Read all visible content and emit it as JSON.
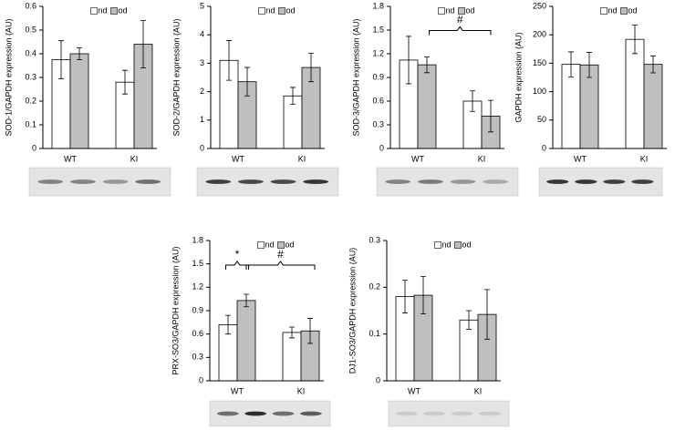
{
  "chart_data": [
    {
      "type": "bar",
      "y_label": "SOD-1/GAPDH expression (AU)",
      "categories": [
        "WT",
        "KI"
      ],
      "series": [
        {
          "name": "nd",
          "color": "#ffffff",
          "values": [
            0.375,
            0.28
          ],
          "errors": [
            0.08,
            0.05
          ]
        },
        {
          "name": "od",
          "color": "#bfbfbf",
          "values": [
            0.4,
            0.44
          ],
          "errors": [
            0.025,
            0.1
          ]
        }
      ],
      "ylim": [
        0,
        0.6
      ],
      "yticks": [
        0,
        0.1,
        0.2,
        0.3,
        0.4,
        0.5,
        0.6
      ]
    },
    {
      "type": "bar",
      "y_label": "SOD-2/GAPDH expression (AU)",
      "categories": [
        "WT",
        "KI"
      ],
      "series": [
        {
          "name": "nd",
          "color": "#ffffff",
          "values": [
            3.1,
            1.85
          ],
          "errors": [
            0.7,
            0.3
          ]
        },
        {
          "name": "od",
          "color": "#bfbfbf",
          "values": [
            2.35,
            2.85
          ],
          "errors": [
            0.5,
            0.5
          ]
        }
      ],
      "ylim": [
        0,
        5
      ],
      "yticks": [
        0,
        1,
        2,
        3,
        4,
        5
      ]
    },
    {
      "type": "bar",
      "y_label": "SOD-3/GAPDH expression (AU)",
      "categories": [
        "WT",
        "KI"
      ],
      "series": [
        {
          "name": "nd",
          "color": "#ffffff",
          "values": [
            1.12,
            0.6
          ],
          "errors": [
            0.3,
            0.13
          ]
        },
        {
          "name": "od",
          "color": "#bfbfbf",
          "values": [
            1.06,
            0.41
          ],
          "errors": [
            0.1,
            0.2
          ]
        }
      ],
      "ylim": [
        0,
        1.8
      ],
      "yticks": [
        0,
        0.3,
        0.6,
        0.9,
        1.2,
        1.5,
        1.8
      ],
      "annotations": [
        {
          "text": "#"
        }
      ]
    },
    {
      "type": "bar",
      "y_label": "GAPDH expression (AU)",
      "categories": [
        "WT",
        "KI"
      ],
      "series": [
        {
          "name": "nd",
          "color": "#ffffff",
          "values": [
            148,
            192
          ],
          "errors": [
            22,
            25
          ]
        },
        {
          "name": "od",
          "color": "#bfbfbf",
          "values": [
            147,
            148
          ],
          "errors": [
            22,
            15
          ]
        }
      ],
      "ylim": [
        0,
        250
      ],
      "yticks": [
        0,
        50,
        100,
        150,
        200,
        250
      ]
    },
    {
      "type": "bar",
      "y_label": "PRX-SO3/GAPDH  expression (AU)",
      "categories": [
        "WT",
        "KI"
      ],
      "series": [
        {
          "name": "nd",
          "color": "#ffffff",
          "values": [
            0.72,
            0.62
          ],
          "errors": [
            0.12,
            0.07
          ]
        },
        {
          "name": "od",
          "color": "#bfbfbf",
          "values": [
            1.03,
            0.64
          ],
          "errors": [
            0.08,
            0.16
          ]
        }
      ],
      "ylim": [
        0,
        1.8
      ],
      "yticks": [
        0,
        0.3,
        0.6,
        0.9,
        1.2,
        1.5,
        1.8
      ],
      "annotations": [
        {
          "text": "*"
        },
        {
          "text": "#"
        }
      ]
    },
    {
      "type": "bar",
      "y_label": "DJ1-SO3/GAPDH expression (AU)",
      "categories": [
        "WT",
        "KI"
      ],
      "series": [
        {
          "name": "nd",
          "color": "#ffffff",
          "values": [
            0.18,
            0.13
          ],
          "errors": [
            0.035,
            0.02
          ]
        },
        {
          "name": "od",
          "color": "#bfbfbf",
          "values": [
            0.183,
            0.142
          ],
          "errors": [
            0.04,
            0.053
          ]
        }
      ],
      "ylim": [
        0,
        0.3
      ],
      "yticks": [
        0,
        0.1,
        0.2,
        0.3
      ]
    }
  ]
}
